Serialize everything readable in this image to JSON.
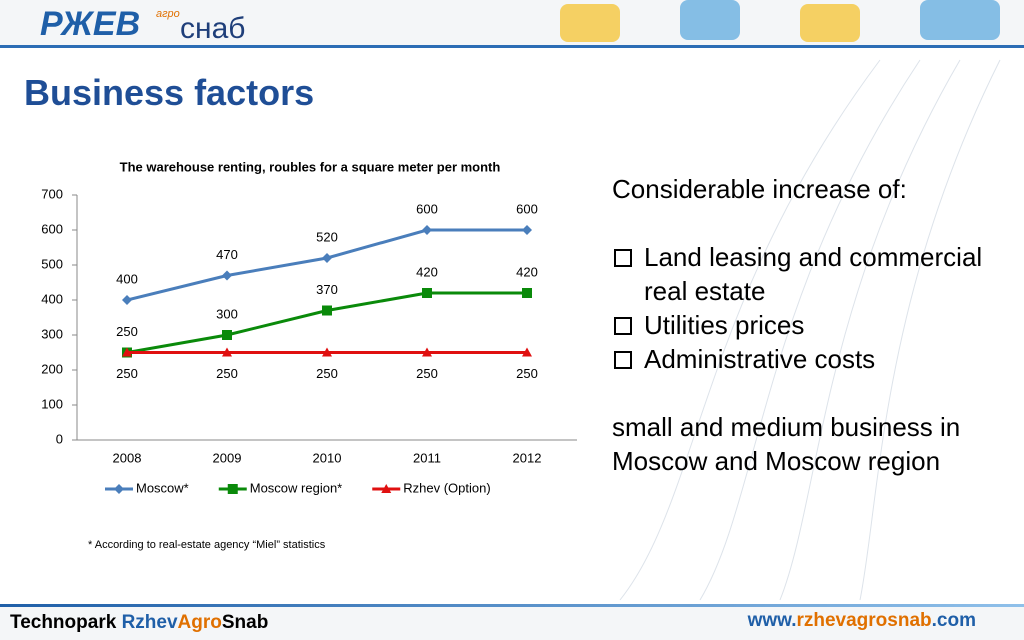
{
  "logo": {
    "left": "РЖЕВ",
    "small": "агро",
    "right": "снаб"
  },
  "title": "Business factors",
  "chart_data": {
    "type": "line",
    "title": "The warehouse renting, roubles for a square meter per month",
    "categories": [
      "2008",
      "2009",
      "2010",
      "2011",
      "2012"
    ],
    "series": [
      {
        "name": "Moscow*",
        "color": "#4a7ebb",
        "marker": "diamond",
        "values": [
          400,
          470,
          520,
          600,
          600
        ]
      },
      {
        "name": "Moscow region*",
        "color": "#0a8a0a",
        "marker": "square",
        "values": [
          250,
          300,
          370,
          420,
          420
        ]
      },
      {
        "name": "Rzhev (Option)",
        "color": "#e01010",
        "marker": "triangle",
        "values": [
          250,
          250,
          250,
          250,
          250
        ]
      }
    ],
    "ylim": [
      0,
      700
    ],
    "yticks": [
      0,
      100,
      200,
      300,
      400,
      500,
      600,
      700
    ],
    "grid": false,
    "legend": "bottom"
  },
  "footnote": "* According to real-estate agency “Miel” statistics",
  "text": {
    "intro": "Considerable increase of:",
    "bullets": [
      "Land leasing and commercial real estate",
      "Utilities prices",
      "Administrative costs"
    ],
    "outro": "small and medium business in Moscow and Moscow region"
  },
  "footer": {
    "left": [
      "Technopark ",
      "Rzhev",
      "Agro",
      "Snab"
    ],
    "right": [
      "www.",
      "rzhevagrosnab",
      ".com"
    ]
  }
}
